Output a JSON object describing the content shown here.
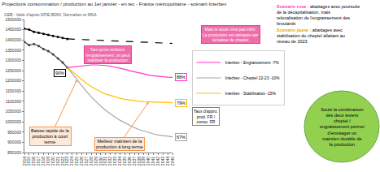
{
  "chart_data": {
    "type": "line",
    "title": "Projections consommation / production au 1er janvier - en tec - France métropolitaine - scénarii Interbev",
    "subtitle": "GEB - Idele d'après SPIE-BDNI, Normabev et MSA",
    "x": [
      2014,
      2015,
      2016,
      2017,
      2018,
      2019,
      2020,
      2021,
      2022,
      2023,
      2024,
      2025,
      2026,
      2027,
      2028,
      2029,
      2030,
      2031,
      2032,
      2033,
      2034,
      2035,
      2036,
      2037,
      2038,
      2039,
      2040,
      2041,
      2042,
      2043,
      2044,
      2045
    ],
    "xlim": [
      2014,
      2045
    ],
    "xticks": [
      2014,
      2015,
      2016,
      2017,
      2018,
      2019,
      2020,
      2021,
      2022,
      2023,
      2024,
      2025,
      2026,
      2027,
      2028,
      2029,
      2030,
      2031,
      2032,
      2033,
      2034,
      2035,
      2036,
      2037,
      2038,
      2039,
      2040,
      2041,
      2042,
      2043,
      2044,
      2045
    ],
    "ylim": [
      850000,
      1500000
    ],
    "yticks": [
      850000,
      900000,
      950000,
      1000000,
      1050000,
      1100000,
      1150000,
      1200000,
      1250000,
      1300000,
      1350000,
      1400000,
      1450000,
      1500000
    ],
    "grid": false,
    "legend": "right",
    "series": [
      {
        "color": "#000000",
        "marker": "circle",
        "values": [
          1455000,
          1450000,
          1440000,
          1435000,
          1430000,
          1425000,
          1420000,
          1415000,
          1410000,
          1405000,
          null,
          null,
          null,
          null,
          null,
          null,
          null,
          null,
          null,
          null,
          null,
          null,
          null,
          null,
          null,
          null,
          null,
          null,
          null,
          null,
          null,
          null
        ]
      },
      {
        "color": "#000000",
        "line_style": "dash",
        "values": [
          null,
          null,
          null,
          null,
          null,
          null,
          null,
          null,
          null,
          1405000,
          1404000,
          1402000,
          1401000,
          1400000,
          1398000,
          1397000,
          1396000,
          1395000,
          1394000,
          1393000,
          1392000,
          1391000,
          1390000,
          1389000,
          1388000,
          1387000,
          1386000,
          1385000,
          1384000,
          1384000,
          1383000,
          1383000
        ]
      },
      {
        "color": "#404040",
        "marker": "circle",
        "values": [
          1390000,
          1375000,
          1380000,
          1370000,
          1355000,
          1345000,
          1330000,
          1310000,
          1290000,
          1265000,
          null,
          null,
          null,
          null,
          null,
          null,
          null,
          null,
          null,
          null,
          null,
          null,
          null,
          null,
          null,
          null,
          null,
          null,
          null,
          null,
          null,
          null
        ]
      },
      {
        "name": "Interbev - Engraissement -7%",
        "color": "#ff33cc",
        "values": [
          null,
          null,
          null,
          null,
          null,
          null,
          null,
          null,
          null,
          1265000,
          1268000,
          1272000,
          1275000,
          1277000,
          1278000,
          1278000,
          1277000,
          1275000,
          1272000,
          1268000,
          1263000,
          1257000,
          1250000,
          1244000,
          1238000,
          1233000,
          1229000,
          1225000,
          1222000,
          1220000,
          1218000,
          1217000
        ]
      },
      {
        "name": "Interbev - Cheptel 22-23 -10%",
        "color": "#a6a6a6",
        "values": [
          null,
          null,
          null,
          null,
          null,
          null,
          null,
          null,
          null,
          1265000,
          1235000,
          1205000,
          1175000,
          1148000,
          1122000,
          1098000,
          1076000,
          1056000,
          1038000,
          1022000,
          1008000,
          995000,
          983000,
          972000,
          962000,
          954000,
          947000,
          941000,
          936000,
          932000,
          929000,
          927000
        ]
      },
      {
        "name": "Interbev - Stabilisation -15%",
        "color": "#ffc000",
        "values": [
          null,
          null,
          null,
          null,
          null,
          null,
          null,
          null,
          null,
          1265000,
          1245000,
          1225000,
          1205000,
          1188000,
          1172000,
          1158000,
          1146000,
          1136000,
          1128000,
          1121000,
          1115000,
          1110000,
          1106000,
          1103000,
          1100000,
          1098000,
          1097000,
          1096000,
          1095000,
          1094000,
          1094000,
          1093000
        ]
      }
    ],
    "rate_labels": [
      "90%",
      "88%",
      "79%",
      "67%"
    ],
    "annotations": [
      {
        "text": "Tant qu'on renforce l'engraissement, on peut stabiliser la production"
      },
      {
        "text": "Mais le stock n'est pas infini. La production est rattrapée par la baisse de cheptel"
      },
      {
        "text": "Baisse rapide de la production à court terme"
      },
      {
        "text": "Meilleur maintien de la production à long terme"
      },
      {
        "text": "Taux d'appro. prod. FR / conso. FR"
      },
      {
        "text": "Seule la combinaison des deux leviers cheptel / engraissement permet d'envisager un maintien durable de la production"
      }
    ],
    "scenarios": [
      {
        "label": "Scenario rose",
        "text": ": abattages avec poursuite de la décapitalisation, mais relocalisation de l'engraissement des broutards",
        "color": "#ff33cc"
      },
      {
        "label": "Scenario jaune",
        "text": ": abattages avec stabilisation du cheptel allaitant au niveau de 2023",
        "color": "#e6a800"
      }
    ]
  }
}
